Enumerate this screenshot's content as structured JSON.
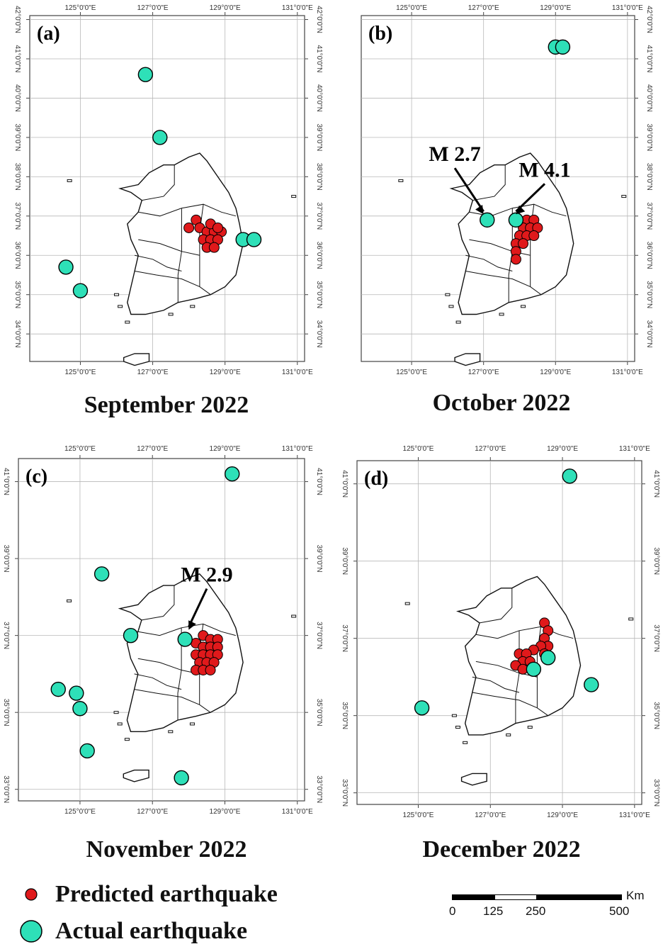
{
  "panels": [
    {
      "id": "a",
      "label": "(a)",
      "caption": "September 2022",
      "lon_ticks": [
        "125°0'0\"E",
        "127°0'0\"E",
        "129°0'0\"E",
        "131°0'0\"E"
      ],
      "lat_ticks_left": [
        "34°0'0\"N",
        "35°0'0\"N",
        "36°0'0\"N",
        "37°0'0\"N",
        "38°0'0\"N",
        "39°0'0\"N",
        "40°0'0\"N",
        "41°0'0\"N",
        "42°0'0\"N"
      ],
      "lat_ticks_right": [
        "34°0'0\"N",
        "35°0'0\"N",
        "36°0'0\"N",
        "37°0'0\"N",
        "38°0'0\"N",
        "39°0'0\"N",
        "40°0'0\"N",
        "41°0'0\"N",
        "42°0'0\"N"
      ],
      "annotations": [],
      "actual": [
        [
          126.8,
          40.6
        ],
        [
          127.2,
          39.0
        ],
        [
          124.6,
          35.7
        ],
        [
          125.0,
          35.1
        ],
        [
          129.5,
          36.4
        ],
        [
          129.8,
          36.4
        ]
      ],
      "predicted": [
        [
          128.0,
          36.7
        ],
        [
          128.2,
          36.9
        ],
        [
          128.3,
          36.7
        ],
        [
          128.5,
          36.6
        ],
        [
          128.7,
          36.6
        ],
        [
          128.9,
          36.6
        ],
        [
          128.4,
          36.4
        ],
        [
          128.6,
          36.4
        ],
        [
          128.8,
          36.4
        ],
        [
          128.5,
          36.2
        ],
        [
          128.7,
          36.2
        ],
        [
          128.6,
          36.8
        ],
        [
          128.8,
          36.7
        ]
      ]
    },
    {
      "id": "b",
      "label": "(b)",
      "caption": "October 2022",
      "lon_ticks": [
        "125°0'0\"E",
        "127°0'0\"E",
        "129°0'0\"E",
        "131°0'0\"E"
      ],
      "lat_ticks_left": [],
      "lat_ticks_right": [
        "34°0'0\"N",
        "35°0'0\"N",
        "36°0'0\"N",
        "37°0'0\"N",
        "38°0'0\"N",
        "39°0'0\"N",
        "40°0'0\"N",
        "41°0'0\"N",
        "42°0'0\"N"
      ],
      "annotations": [
        {
          "text": "M 2.7",
          "lon": 126.2,
          "lat": 38.4,
          "arrow_to": [
            127.0,
            36.9
          ]
        },
        {
          "text": "M 4.1",
          "lon": 128.7,
          "lat": 38.0,
          "arrow_to": [
            127.9,
            36.9
          ]
        }
      ],
      "actual": [
        [
          129.0,
          41.3
        ],
        [
          129.2,
          41.3
        ],
        [
          127.1,
          36.9
        ],
        [
          127.9,
          36.9
        ]
      ],
      "predicted": [
        [
          128.2,
          36.9
        ],
        [
          128.4,
          36.9
        ],
        [
          128.1,
          36.7
        ],
        [
          128.3,
          36.7
        ],
        [
          128.5,
          36.7
        ],
        [
          128.0,
          36.5
        ],
        [
          128.2,
          36.5
        ],
        [
          128.4,
          36.5
        ],
        [
          127.9,
          36.3
        ],
        [
          128.1,
          36.3
        ],
        [
          127.9,
          36.1
        ],
        [
          127.9,
          35.9
        ]
      ]
    },
    {
      "id": "c",
      "label": "(c)",
      "caption": "November 2022",
      "lon_ticks": [
        "125°0'0\"E",
        "127°0'0\"E",
        "129°0'0\"E",
        "131°0'0\"E"
      ],
      "lat_ticks_left": [
        "33°0'0\"N",
        "35°0'0\"N",
        "37°0'0\"N",
        "39°0'0\"N",
        "41°0'0\"N"
      ],
      "lat_ticks_right": [
        "33°0'0\"N",
        "35°0'0\"N",
        "37°0'0\"N",
        "39°0'0\"N",
        "41°0'0\"N"
      ],
      "annotations": [
        {
          "text": "M 2.9",
          "lon": 128.5,
          "lat": 38.4,
          "arrow_to": [
            128.0,
            37.0
          ]
        }
      ],
      "actual": [
        [
          129.2,
          41.2
        ],
        [
          125.6,
          38.6
        ],
        [
          126.4,
          37.0
        ],
        [
          127.9,
          36.9
        ],
        [
          124.4,
          35.6
        ],
        [
          124.9,
          35.5
        ],
        [
          125.0,
          35.1
        ],
        [
          125.2,
          34.0
        ],
        [
          127.8,
          33.3
        ]
      ],
      "predicted": [
        [
          128.4,
          37.0
        ],
        [
          128.6,
          36.9
        ],
        [
          128.8,
          36.9
        ],
        [
          128.2,
          36.8
        ],
        [
          128.4,
          36.7
        ],
        [
          128.6,
          36.7
        ],
        [
          128.8,
          36.7
        ],
        [
          128.2,
          36.5
        ],
        [
          128.4,
          36.5
        ],
        [
          128.6,
          36.5
        ],
        [
          128.8,
          36.5
        ],
        [
          128.3,
          36.3
        ],
        [
          128.5,
          36.3
        ],
        [
          128.7,
          36.3
        ],
        [
          128.2,
          36.1
        ],
        [
          128.4,
          36.1
        ],
        [
          128.6,
          36.1
        ]
      ]
    },
    {
      "id": "d",
      "label": "(d)",
      "caption": "December 2022",
      "lon_ticks": [
        "125°0'0\"E",
        "127°0'0\"E",
        "129°0'0\"E",
        "131°0'0\"E"
      ],
      "lat_ticks_left": [
        "33°0'0\"N",
        "35°0'0\"N",
        "37°0'0\"N",
        "39°0'0\"N",
        "41°0'0\"N"
      ],
      "lat_ticks_right": [
        "33°0'0\"N",
        "35°0'0\"N",
        "37°0'0\"N",
        "39°0'0\"N",
        "41°0'0\"N"
      ],
      "annotations": [],
      "actual": [
        [
          129.2,
          41.2
        ],
        [
          125.1,
          35.2
        ],
        [
          128.2,
          36.2
        ],
        [
          128.6,
          36.5
        ],
        [
          129.8,
          35.8
        ]
      ],
      "predicted": [
        [
          128.5,
          37.4
        ],
        [
          128.6,
          37.2
        ],
        [
          128.5,
          37.0
        ],
        [
          128.6,
          36.8
        ],
        [
          128.4,
          36.8
        ],
        [
          128.2,
          36.7
        ],
        [
          128.5,
          36.6
        ],
        [
          127.8,
          36.6
        ],
        [
          128.0,
          36.6
        ],
        [
          127.9,
          36.4
        ],
        [
          128.1,
          36.4
        ],
        [
          127.7,
          36.3
        ],
        [
          127.9,
          36.2
        ]
      ]
    }
  ],
  "legend": {
    "predicted_label": "Predicted earthquake",
    "actual_label": "Actual earthquake"
  },
  "scale": {
    "unit": "Km",
    "labels": [
      "0",
      "125",
      "250",
      "500"
    ]
  },
  "colors": {
    "predicted": "#e0191b",
    "actual": "#2ee0b8",
    "grid": "#b8b8b8",
    "coast": "#111111"
  }
}
